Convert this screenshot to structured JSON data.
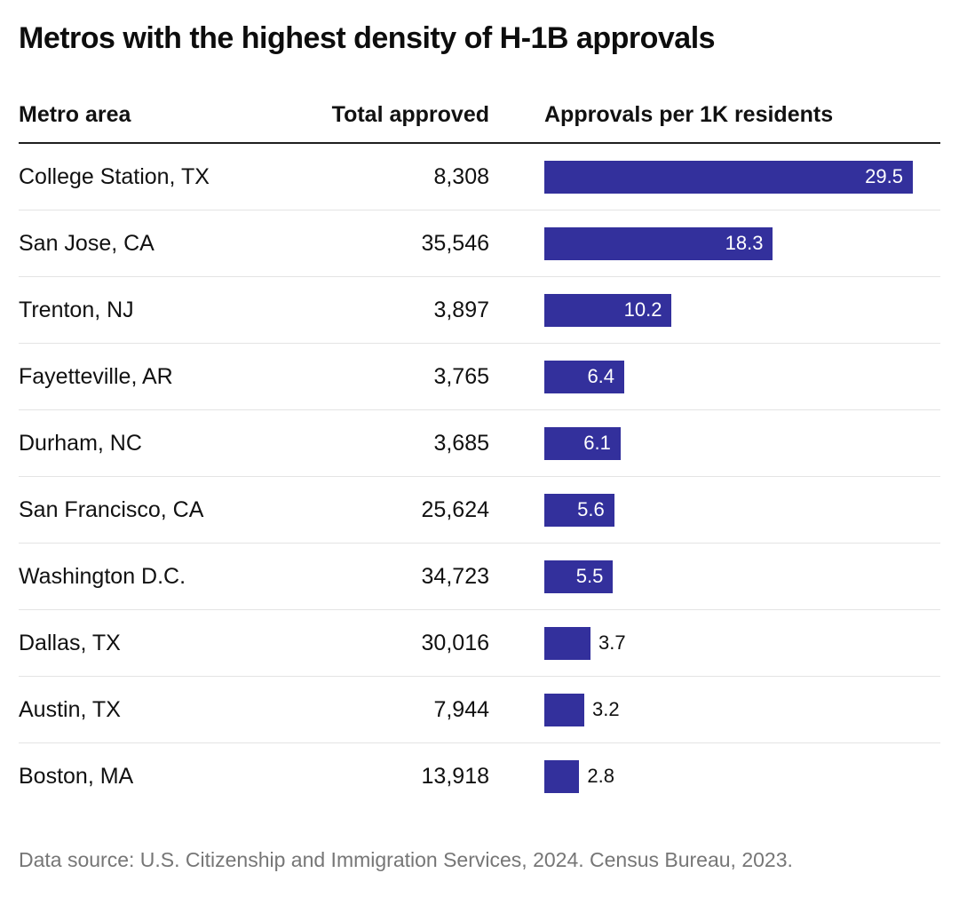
{
  "title": "Metros with the highest density of H-1B approvals",
  "table": {
    "headers": {
      "metro": "Metro area",
      "total": "Total approved",
      "per_1k": "Approvals per 1K residents"
    },
    "rows": [
      {
        "metro": "College Station, TX",
        "total": "8,308",
        "per_1k": 29.5
      },
      {
        "metro": "San Jose, CA",
        "total": "35,546",
        "per_1k": 18.3
      },
      {
        "metro": "Trenton, NJ",
        "total": "3,897",
        "per_1k": 10.2
      },
      {
        "metro": "Fayetteville, AR",
        "total": "3,765",
        "per_1k": 6.4
      },
      {
        "metro": "Durham, NC",
        "total": "3,685",
        "per_1k": 6.1
      },
      {
        "metro": "San Francisco, CA",
        "total": "25,624",
        "per_1k": 5.6
      },
      {
        "metro": "Washington D.C.",
        "total": "34,723",
        "per_1k": 5.5
      },
      {
        "metro": "Dallas, TX",
        "total": "30,016",
        "per_1k": 3.7
      },
      {
        "metro": "Austin, TX",
        "total": "7,944",
        "per_1k": 3.2
      },
      {
        "metro": "Boston, MA",
        "total": "13,918",
        "per_1k": 2.8
      }
    ]
  },
  "footer": {
    "source": "Data source: U.S. Citizenship and Immigration Services, 2024. Census Bureau, 2023."
  },
  "colors": {
    "bar": "#33309c",
    "header_border": "#1f1f1f",
    "row_border": "#e4e4e4",
    "footer_text": "#767676"
  },
  "chart_data": {
    "type": "bar",
    "orientation": "horizontal",
    "title": "Metros with the highest density of H-1B approvals",
    "categories": [
      "College Station, TX",
      "San Jose, CA",
      "Trenton, NJ",
      "Fayetteville, AR",
      "Durham, NC",
      "San Francisco, CA",
      "Washington D.C.",
      "Dallas, TX",
      "Austin, TX",
      "Boston, MA"
    ],
    "series": [
      {
        "name": "Total approved",
        "values": [
          8308,
          35546,
          3897,
          3765,
          3685,
          25624,
          34723,
          30016,
          7944,
          13918
        ]
      },
      {
        "name": "Approvals per 1K residents",
        "values": [
          29.5,
          18.3,
          10.2,
          6.4,
          6.1,
          5.6,
          5.5,
          3.7,
          3.2,
          2.8
        ]
      }
    ],
    "xlabel": "Approvals per 1K residents",
    "ylabel": "Metro area",
    "xlim": [
      0,
      29.5
    ],
    "grid": false,
    "legend": "none",
    "value_labels": true,
    "source_note": "Data source: U.S. Citizenship and Immigration Services, 2024. Census Bureau, 2023."
  }
}
